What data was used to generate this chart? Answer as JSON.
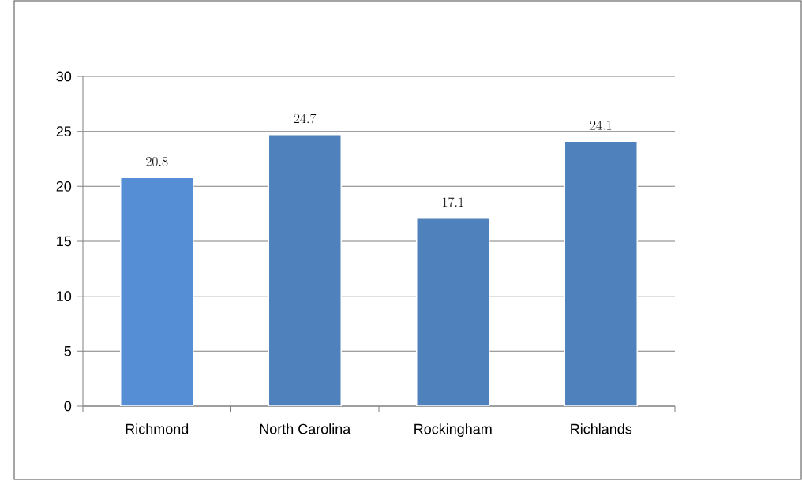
{
  "chart_data": {
    "type": "bar",
    "categories": [
      "Richmond",
      "North Carolina",
      "Rockingham",
      "Richlands"
    ],
    "values": [
      20.8,
      24.7,
      17.1,
      24.1
    ],
    "colors": [
      "#558ed5",
      "#4f81bd",
      "#4f81bd",
      "#4f81bd"
    ],
    "ylim": [
      0,
      30
    ],
    "yticks": [
      0,
      5,
      10,
      15,
      20,
      25,
      30
    ],
    "grid": "y",
    "data_labels": true
  }
}
